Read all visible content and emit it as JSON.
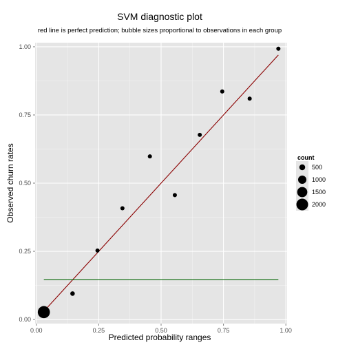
{
  "chart_data": {
    "type": "scatter",
    "title": "SVM diagnostic plot",
    "subtitle": "red line is perfect prediction; bubble sizes proportional to observations in each group",
    "xlabel": "Predicted probability ranges",
    "ylabel": "Observed churn rates",
    "xlim": [
      -0.005,
      1.005
    ],
    "ylim": [
      -0.015,
      1.015
    ],
    "x_ticks": [
      0.0,
      0.25,
      0.5,
      0.75,
      1.0
    ],
    "x_tick_labels": [
      "0.00",
      "0.25",
      "0.50",
      "0.75",
      "1.00"
    ],
    "y_ticks": [
      0.0,
      0.25,
      0.5,
      0.75,
      1.0
    ],
    "y_tick_labels": [
      "0.00",
      "0.25",
      "0.50",
      "0.75",
      "1.00"
    ],
    "grid": true,
    "points": [
      {
        "x": 0.03,
        "y": 0.027,
        "count": 2150
      },
      {
        "x": 0.145,
        "y": 0.095,
        "count": 300
      },
      {
        "x": 0.245,
        "y": 0.253,
        "count": 250
      },
      {
        "x": 0.345,
        "y": 0.408,
        "count": 250
      },
      {
        "x": 0.455,
        "y": 0.598,
        "count": 250
      },
      {
        "x": 0.555,
        "y": 0.456,
        "count": 250
      },
      {
        "x": 0.655,
        "y": 0.677,
        "count": 250
      },
      {
        "x": 0.745,
        "y": 0.836,
        "count": 250
      },
      {
        "x": 0.855,
        "y": 0.81,
        "count": 250
      },
      {
        "x": 0.97,
        "y": 0.993,
        "count": 250
      }
    ],
    "lines": [
      {
        "kind": "perfect-prediction",
        "color": "#8b0000",
        "x": [
          0.03,
          0.97
        ],
        "y": [
          0.03,
          0.97
        ]
      },
      {
        "kind": "horizontal",
        "color": "#006400",
        "x": [
          0.03,
          0.97
        ],
        "y": [
          0.146,
          0.146
        ]
      }
    ],
    "legend": {
      "title": "count",
      "position": "right",
      "entries": [
        {
          "label": "500",
          "count": 500
        },
        {
          "label": "1000",
          "count": 1000
        },
        {
          "label": "1500",
          "count": 1500
        },
        {
          "label": "2000",
          "count": 2000
        }
      ]
    },
    "colors": {
      "panel_background": "#e5e5e5",
      "grid_major": "#ffffff",
      "grid_minor": "#f2f2f2",
      "point_fill": "#000000"
    }
  }
}
